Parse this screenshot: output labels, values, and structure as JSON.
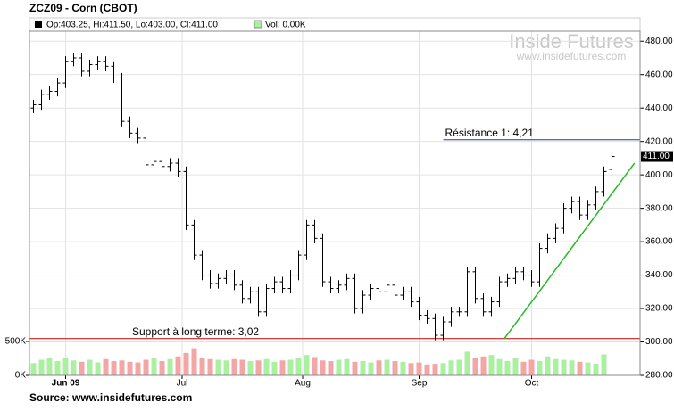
{
  "chart_data": {
    "type": "ohlc",
    "title": "ZCZ09 - Corn (CBOT)",
    "info": "Op:403.25, Hi:411.50, Lo:403.00, Cl:411.00",
    "volume_info": "Vol: 0.00K",
    "watermark": "Inside Futures",
    "watermark_url": "www.insidefutures.com",
    "source": "Source: www.insidefutures.com",
    "x": [
      0,
      1,
      2,
      3,
      4,
      5,
      6,
      7,
      8,
      9,
      10,
      11,
      12,
      13,
      14,
      15,
      16,
      17,
      18,
      19,
      20,
      21,
      22,
      23,
      24,
      25,
      26,
      27,
      28,
      29,
      30,
      31,
      32,
      33,
      34,
      35,
      36,
      37,
      38,
      39,
      40,
      41,
      42,
      43,
      44,
      45,
      46,
      47,
      48,
      49,
      50,
      51,
      52,
      53,
      54,
      55,
      56,
      57,
      58,
      59,
      60,
      61,
      62,
      63,
      64,
      65,
      66,
      67,
      68,
      69,
      70,
      71,
      72
    ],
    "open": [
      440,
      442,
      448,
      450,
      455,
      468,
      470,
      462,
      466,
      468,
      465,
      458,
      432,
      425,
      422,
      406,
      408,
      405,
      407,
      402,
      370,
      352,
      340,
      335,
      338,
      340,
      334,
      326,
      330,
      318,
      332,
      336,
      332,
      340,
      352,
      370,
      362,
      336,
      332,
      334,
      338,
      320,
      328,
      332,
      330,
      334,
      328,
      330,
      324,
      316,
      314,
      304,
      312,
      318,
      318,
      342,
      326,
      318,
      324,
      336,
      338,
      342,
      340,
      336,
      356,
      362,
      368,
      380,
      384,
      376,
      382,
      390,
      403.25
    ],
    "high": [
      445,
      451,
      453,
      458,
      471,
      473,
      473,
      469,
      471,
      471,
      468,
      461,
      435,
      428,
      425,
      411,
      411,
      410,
      410,
      405,
      373,
      355,
      343,
      341,
      343,
      343,
      337,
      333,
      333,
      335,
      339,
      339,
      343,
      355,
      373,
      373,
      365,
      339,
      337,
      341,
      341,
      331,
      335,
      335,
      337,
      337,
      333,
      333,
      327,
      319,
      317,
      315,
      321,
      321,
      345,
      345,
      329,
      327,
      339,
      341,
      345,
      345,
      343,
      359,
      365,
      371,
      383,
      387,
      387,
      385,
      393,
      405,
      411.5
    ],
    "low": [
      437,
      439,
      445,
      447,
      452,
      465,
      459,
      459,
      463,
      462,
      455,
      429,
      422,
      419,
      403,
      403,
      402,
      402,
      399,
      367,
      349,
      337,
      332,
      332,
      335,
      331,
      323,
      323,
      315,
      315,
      329,
      329,
      329,
      337,
      349,
      359,
      333,
      329,
      329,
      331,
      317,
      317,
      325,
      327,
      327,
      325,
      325,
      321,
      313,
      311,
      301,
      301,
      309,
      315,
      315,
      323,
      315,
      315,
      321,
      333,
      335,
      337,
      333,
      333,
      353,
      359,
      365,
      377,
      373,
      373,
      379,
      387,
      403
    ],
    "close": [
      442,
      448,
      450,
      455,
      468,
      470,
      462,
      466,
      468,
      465,
      458,
      432,
      425,
      422,
      406,
      408,
      405,
      407,
      402,
      370,
      352,
      340,
      335,
      338,
      340,
      334,
      326,
      330,
      318,
      332,
      336,
      332,
      340,
      352,
      370,
      362,
      336,
      332,
      334,
      338,
      320,
      328,
      332,
      330,
      334,
      328,
      330,
      324,
      316,
      314,
      304,
      312,
      318,
      318,
      342,
      326,
      318,
      324,
      336,
      338,
      342,
      340,
      336,
      356,
      362,
      368,
      380,
      384,
      376,
      382,
      390,
      402,
      411
    ],
    "volume": [
      180000,
      230000,
      260000,
      210000,
      250000,
      220000,
      200000,
      230000,
      190000,
      240000,
      210000,
      220000,
      200000,
      190000,
      230000,
      250000,
      210000,
      240000,
      280000,
      330000,
      400000,
      260000,
      240000,
      230000,
      220000,
      240000,
      230000,
      210000,
      220000,
      240000,
      200000,
      220000,
      230000,
      250000,
      300000,
      270000,
      220000,
      210000,
      230000,
      240000,
      200000,
      210000,
      190000,
      220000,
      230000,
      210000,
      200000,
      180000,
      190000,
      160000,
      170000,
      180000,
      220000,
      230000,
      350000,
      260000,
      280000,
      300000,
      240000,
      210000,
      250000,
      200000,
      230000,
      210000,
      280000,
      240000,
      230000,
      220000,
      200000,
      190000,
      170000,
      310000,
      0
    ],
    "up_color": "#aaf0a0",
    "down_color": "#f4a6a6",
    "bar_color": "#000000",
    "xlim": [
      -0.5,
      75.5
    ],
    "xticks": [
      {
        "value": 4,
        "label": "Jun 09"
      },
      {
        "value": 18.5,
        "label": "Jul"
      },
      {
        "value": 33.5,
        "label": "Aug"
      },
      {
        "value": 48,
        "label": "Sep"
      },
      {
        "value": 62,
        "label": "Oct"
      }
    ],
    "ylim": [
      280,
      486
    ],
    "yticks": [
      {
        "value": 280,
        "label": "280.00"
      },
      {
        "value": 300,
        "label": "300.00"
      },
      {
        "value": 320,
        "label": "320.00"
      },
      {
        "value": 340,
        "label": "340.00"
      },
      {
        "value": 360,
        "label": "360.00"
      },
      {
        "value": 380,
        "label": "380.00"
      },
      {
        "value": 400,
        "label": "400.00"
      },
      {
        "value": 420,
        "label": "420.00"
      },
      {
        "value": 440,
        "label": "440.00"
      },
      {
        "value": 460,
        "label": "460.00"
      },
      {
        "value": 480,
        "label": "480.00"
      }
    ],
    "vlim": [
      0,
      500000
    ],
    "vticks": [
      {
        "value": 0,
        "label": "0K"
      },
      {
        "value": 500000,
        "label": "500K"
      }
    ],
    "last_price": {
      "value": 411,
      "label": "411.00"
    },
    "resistance": {
      "label": "Résistance 1: 4,21",
      "value": 421,
      "x_start": 51,
      "color": "#1f3f8f"
    },
    "support": {
      "label": "Support à long terme: 3,02",
      "value": 302,
      "color": "#cc0000"
    },
    "trendline": {
      "x": [
        58.6,
        74.8
      ],
      "y": [
        302,
        407
      ],
      "color": "#22bb22"
    },
    "grid": true
  }
}
